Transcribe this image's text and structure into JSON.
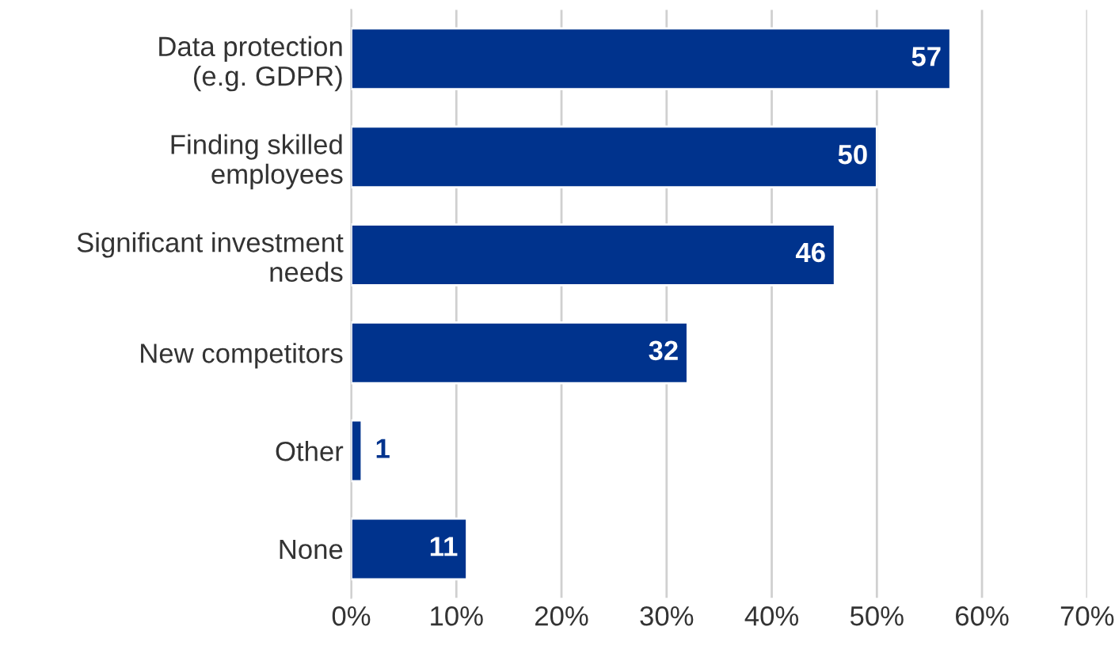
{
  "chart_data": {
    "type": "bar",
    "orientation": "horizontal",
    "categories": [
      "Data protection\n(e.g. GDPR)",
      "Finding skilled\nemployees",
      "Significant investment\nneeds",
      "New competitors",
      "Other",
      "None"
    ],
    "values": [
      57,
      50,
      46,
      32,
      1,
      11
    ],
    "color": "#00338d",
    "xlim": [
      0,
      70
    ],
    "xticks": [
      {
        "value": 0,
        "label": "0%"
      },
      {
        "value": 10,
        "label": "10%"
      },
      {
        "value": 20,
        "label": "20%"
      },
      {
        "value": 30,
        "label": "30%"
      },
      {
        "value": 40,
        "label": "40%"
      },
      {
        "value": 50,
        "label": "50%"
      },
      {
        "value": 60,
        "label": "60%"
      },
      {
        "value": 70,
        "label": "70%"
      }
    ],
    "grid": "x",
    "data_labels": true
  }
}
